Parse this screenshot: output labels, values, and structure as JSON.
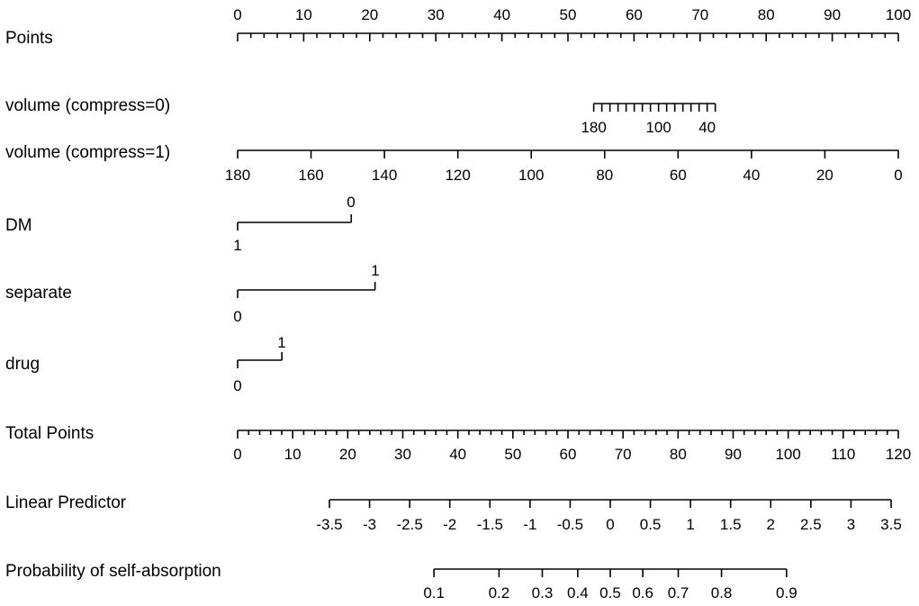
{
  "chart_data": {
    "type": "nomogram",
    "rows": [
      {
        "id": "points",
        "label": "Points",
        "min": 0,
        "max": 100,
        "major_step": 10,
        "minor_step": 2,
        "tick_labels": [
          "0",
          "10",
          "20",
          "30",
          "40",
          "50",
          "60",
          "70",
          "80",
          "90",
          "100"
        ]
      },
      {
        "id": "volume0",
        "label": "volume (compress=0)",
        "value_min": 30,
        "value_max": 180,
        "points_at_min": 72.3,
        "points_at_max": 53.9,
        "tick_step": 20,
        "tick_labels": [
          "180",
          "100",
          "40"
        ]
      },
      {
        "id": "volume1",
        "label": "volume (compress=1)",
        "value_min": 0,
        "value_max": 180,
        "points_at_min": 100,
        "points_at_max": 0,
        "tick_step": 20,
        "tick_labels": [
          "180",
          "160",
          "140",
          "120",
          "100",
          "80",
          "60",
          "40",
          "20",
          "0"
        ]
      },
      {
        "id": "dm",
        "label": "DM",
        "levels": [
          {
            "label": "1",
            "points": 0
          },
          {
            "label": "0",
            "points": 17.2
          }
        ]
      },
      {
        "id": "separate",
        "label": "separate",
        "levels": [
          {
            "label": "0",
            "points": 0
          },
          {
            "label": "1",
            "points": 20.8
          }
        ]
      },
      {
        "id": "drug",
        "label": "drug",
        "levels": [
          {
            "label": "0",
            "points": 0
          },
          {
            "label": "1",
            "points": 6.7
          }
        ]
      },
      {
        "id": "total",
        "label": "Total Points",
        "min": 0,
        "max": 120,
        "major_step": 10,
        "minor_step": 2,
        "tick_labels": [
          "0",
          "10",
          "20",
          "30",
          "40",
          "50",
          "60",
          "70",
          "80",
          "90",
          "100",
          "110",
          "120"
        ]
      },
      {
        "id": "linear",
        "label": "Linear Predictor",
        "min": -3.5,
        "max": 3.5,
        "step": 0.5,
        "tick_labels": [
          "-3.5",
          "-3",
          "-2.5",
          "-2",
          "-1.5",
          "-1",
          "-0.5",
          "0",
          "0.5",
          "1",
          "1.5",
          "2",
          "2.5",
          "3",
          "3.5"
        ]
      },
      {
        "id": "probability",
        "label": "Probability of self-absorption",
        "tick_values": [
          0.1,
          0.2,
          0.3,
          0.4,
          0.5,
          0.6,
          0.7,
          0.8,
          0.9
        ],
        "tick_labels": [
          "0.1",
          "0.2",
          "0.3",
          "0.4",
          "0.5",
          "0.6",
          "0.7",
          "0.8",
          "0.9"
        ]
      }
    ]
  }
}
